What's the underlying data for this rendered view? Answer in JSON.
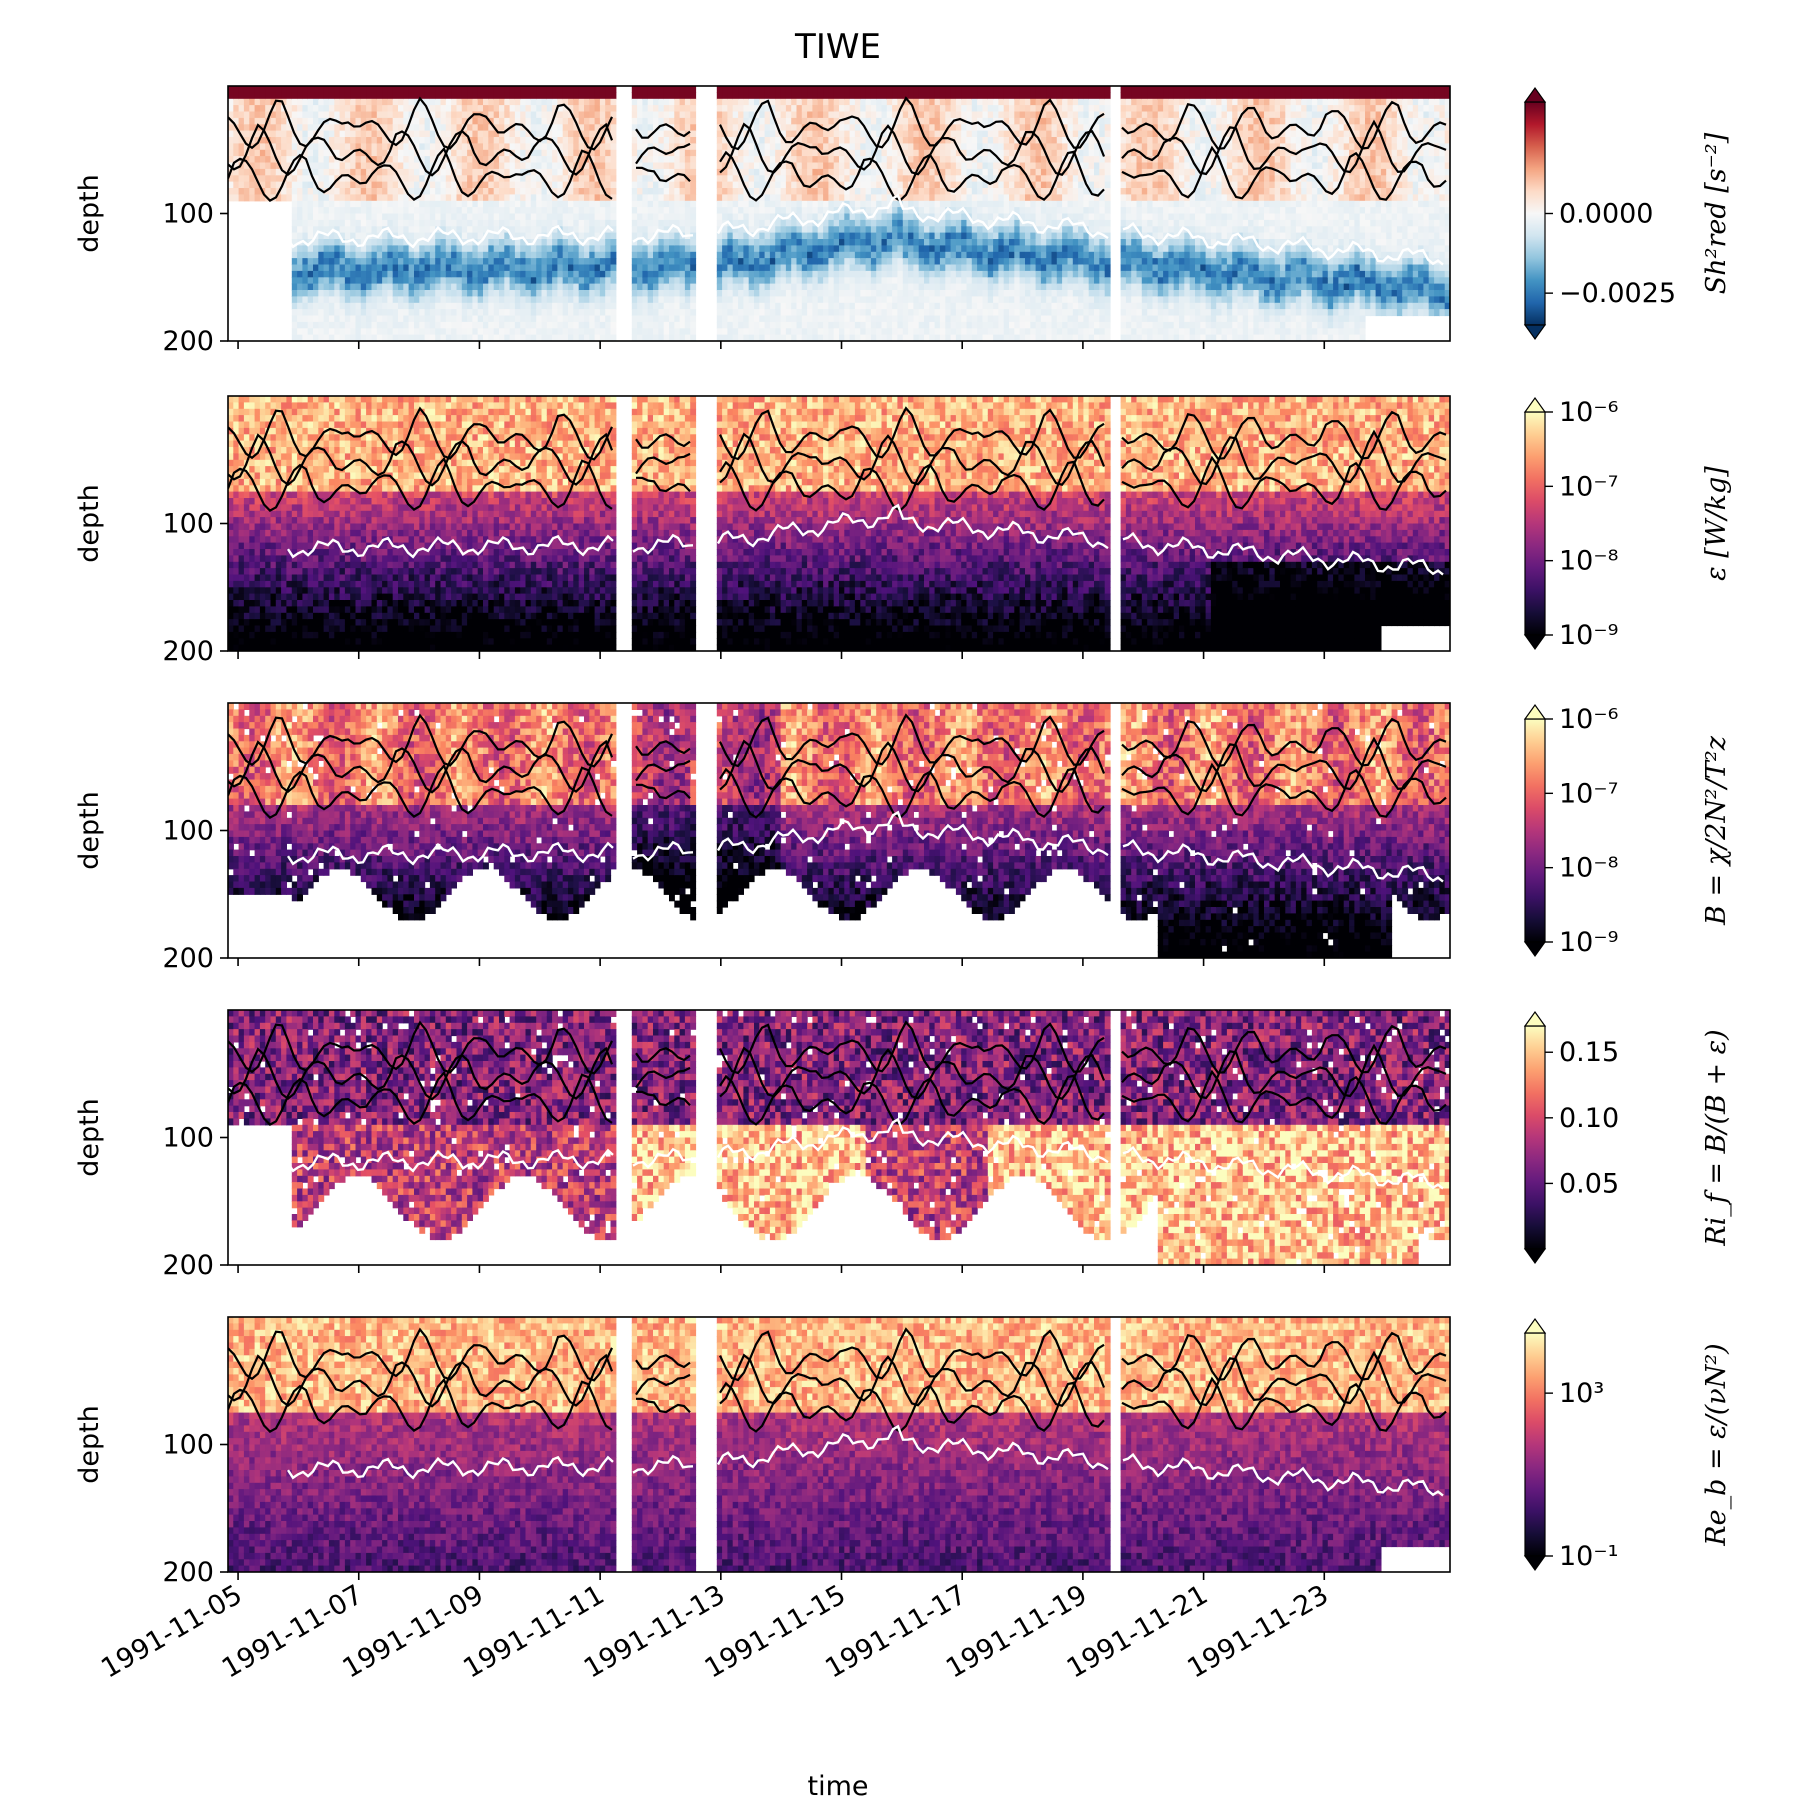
{
  "title": "TIWE",
  "chart_data": {
    "type": "heatmap",
    "title": "TIWE",
    "xlabel": "time",
    "ylabel": "depth",
    "x_range": [
      "1991-11-04T20:00",
      "1991-11-25T02:00"
    ],
    "x_ticks": [
      "1991-11-05",
      "1991-11-07",
      "1991-11-09",
      "1991-11-11",
      "1991-11-13",
      "1991-11-15",
      "1991-11-17",
      "1991-11-19",
      "1991-11-21",
      "1991-11-23"
    ],
    "y_range": [
      200,
      0
    ],
    "y_ticks": [
      "100",
      "200"
    ],
    "gaps": [
      [
        "1991-11-11T06:00",
        "1991-11-11T12:00"
      ],
      [
        "1991-11-12T14:00",
        "1991-11-12T22:00"
      ],
      [
        "1991-11-19T10:00",
        "1991-11-19T14:00"
      ]
    ],
    "panels": [
      {
        "id": "sh2red",
        "colorbar_label": "Sh²red [s⁻²]",
        "colormap": "RdBu_r",
        "scale": "linear",
        "clim": [
          -0.0035,
          0.0035
        ],
        "colorbar_ticks": [
          "0.0000",
          "−0.0025"
        ]
      },
      {
        "id": "epsilon",
        "colorbar_label": "ε [W/kg]",
        "colormap": "magma",
        "scale": "log",
        "clim": [
          1e-09,
          1e-06
        ],
        "colorbar_ticks": [
          "10⁻⁶",
          "10⁻⁷",
          "10⁻⁸",
          "10⁻⁹"
        ]
      },
      {
        "id": "B",
        "colorbar_label": "B = χ/2N²/T²z",
        "colormap": "magma",
        "scale": "log",
        "clim": [
          1e-09,
          1e-06
        ],
        "colorbar_ticks": [
          "10⁻⁶",
          "10⁻⁷",
          "10⁻⁸",
          "10⁻⁹"
        ]
      },
      {
        "id": "Rif",
        "colorbar_label": "Ri_f = B/(B + ε)",
        "colormap": "magma",
        "scale": "linear",
        "clim": [
          0,
          0.17
        ],
        "colorbar_ticks": [
          "0.15",
          "0.10",
          "0.05"
        ]
      },
      {
        "id": "Reb",
        "colorbar_label": "Re_b = ε/(νN²)",
        "colormap": "magma",
        "scale": "log",
        "clim": [
          0.1,
          30000
        ],
        "colorbar_ticks": [
          "10³",
          "10⁻¹"
        ]
      }
    ],
    "overlays": {
      "white_line": "mixed-layer / EUC-core depth, ~115 m early, ~95 m mid-record, ~135 m late",
      "black_contours": "multiple contours in upper 100 m"
    }
  }
}
